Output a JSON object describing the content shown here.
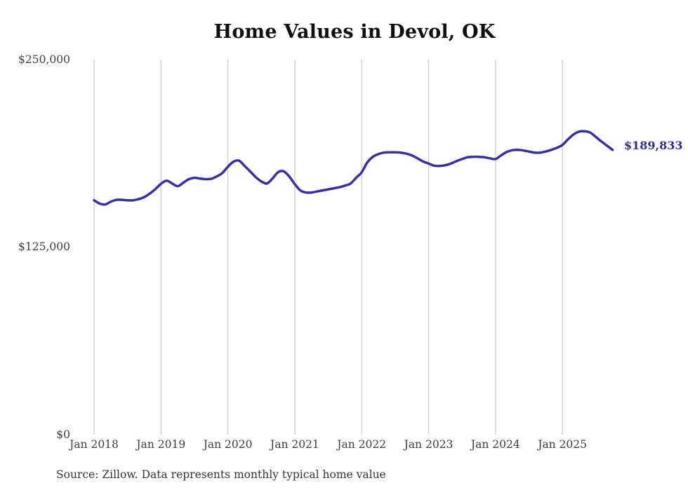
{
  "title": "Home Values in Devol, OK",
  "source_note": "Source: Zillow. Data represents monthly typical home value",
  "end_label": "$189,833",
  "colors": {
    "line": "#39329e",
    "end_label_text": "#2f2d8e",
    "grid": "#cccccc",
    "title_text": "#0f0f0f",
    "tick_text": "#3d3d3d",
    "background": "#ffffff"
  },
  "chart_data": {
    "type": "line",
    "title": "Home Values in Devol, OK",
    "xlabel": "",
    "ylabel": "",
    "ylim": [
      0,
      250000
    ],
    "grid": "vertical-only",
    "legend": "none",
    "frequency": "monthly",
    "x_start_month": "2018-01",
    "x_end_month": "2025-10",
    "x_tick_labels": [
      "Jan 2018",
      "Jan 2019",
      "Jan 2020",
      "Jan 2021",
      "Jan 2022",
      "Jan 2023",
      "Jan 2024",
      "Jan 2025"
    ],
    "y_ticks": [
      {
        "value": 0,
        "label": "$0"
      },
      {
        "value": 125000,
        "label": "$125,000"
      },
      {
        "value": 250000,
        "label": "$250,000"
      }
    ],
    "final_value": 189833,
    "final_value_label": "$189,833",
    "series": [
      {
        "name": "Typical home value",
        "values": [
          156200,
          154000,
          153400,
          155300,
          156500,
          156500,
          156200,
          156200,
          157000,
          158300,
          160700,
          163700,
          167200,
          169300,
          167400,
          165600,
          167900,
          170300,
          171200,
          170700,
          170300,
          170500,
          172100,
          174400,
          178600,
          181900,
          182600,
          179100,
          175400,
          171600,
          168800,
          167400,
          170700,
          174900,
          175500,
          172100,
          167000,
          162800,
          161400,
          161400,
          162100,
          162800,
          163500,
          164200,
          164900,
          166000,
          167400,
          171200,
          174900,
          181400,
          185200,
          187000,
          188000,
          188200,
          188200,
          188000,
          187300,
          186100,
          184200,
          182100,
          180700,
          179300,
          179100,
          179600,
          180700,
          182300,
          183700,
          184900,
          185200,
          185200,
          184900,
          184200,
          183700,
          186100,
          188400,
          189600,
          189800,
          189400,
          188700,
          188000,
          188000,
          188700,
          189800,
          191200,
          193100,
          196800,
          200100,
          202000,
          202200,
          201300,
          198400,
          195400,
          192600,
          189833
        ]
      }
    ]
  }
}
